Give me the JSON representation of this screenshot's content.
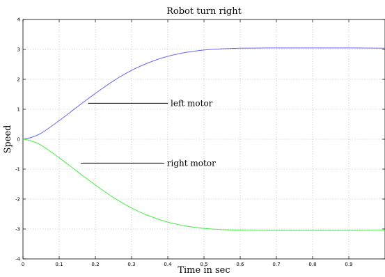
{
  "chart_data": {
    "type": "line",
    "title": "Robot turn right",
    "xlabel": "Time in sec",
    "ylabel": "Speed",
    "xlim": [
      0,
      1
    ],
    "ylim": [
      -4,
      4
    ],
    "grid": true,
    "x_ticks": [
      0,
      0.1,
      0.2,
      0.3,
      0.4,
      0.5,
      0.6,
      0.7,
      0.8,
      0.9
    ],
    "x_tick_labels": [
      "0",
      "0.1",
      "0.2",
      "0.3",
      "0.4",
      "0.5",
      "0.6",
      "0.7",
      "0.8",
      "0.9"
    ],
    "y_ticks": [
      -4,
      -3,
      -2,
      -1,
      0,
      1,
      2,
      3,
      4
    ],
    "y_tick_labels": [
      "-4",
      "-3",
      "-2",
      "-1",
      "0",
      "1",
      "2",
      "3",
      "4"
    ],
    "series": [
      {
        "name": "left motor",
        "color": "#6666ee",
        "x": [
          0,
          0.02,
          0.05,
          0.1,
          0.15,
          0.2,
          0.25,
          0.3,
          0.35,
          0.4,
          0.45,
          0.5,
          0.55,
          0.6,
          0.7,
          0.8,
          0.9,
          1.0
        ],
        "y": [
          0,
          0.05,
          0.2,
          0.62,
          1.08,
          1.53,
          1.95,
          2.3,
          2.57,
          2.77,
          2.9,
          2.98,
          3.02,
          3.04,
          3.05,
          3.05,
          3.05,
          3.04
        ]
      },
      {
        "name": "right motor",
        "color": "#44ee44",
        "x": [
          0,
          0.02,
          0.05,
          0.1,
          0.15,
          0.2,
          0.25,
          0.3,
          0.35,
          0.4,
          0.45,
          0.5,
          0.55,
          0.6,
          0.7,
          0.8,
          0.9,
          1.0
        ],
        "y": [
          0,
          -0.05,
          -0.2,
          -0.62,
          -1.08,
          -1.53,
          -1.95,
          -2.3,
          -2.57,
          -2.77,
          -2.9,
          -2.98,
          -3.02,
          -3.04,
          -3.05,
          -3.05,
          -3.05,
          -3.04
        ]
      }
    ],
    "annotations": [
      {
        "text": "left motor",
        "line_from": [
          0.18,
          1.2
        ],
        "line_to": [
          0.4,
          1.2
        ]
      },
      {
        "text": "right motor",
        "line_from": [
          0.16,
          -0.8
        ],
        "line_to": [
          0.39,
          -0.8
        ]
      }
    ]
  }
}
